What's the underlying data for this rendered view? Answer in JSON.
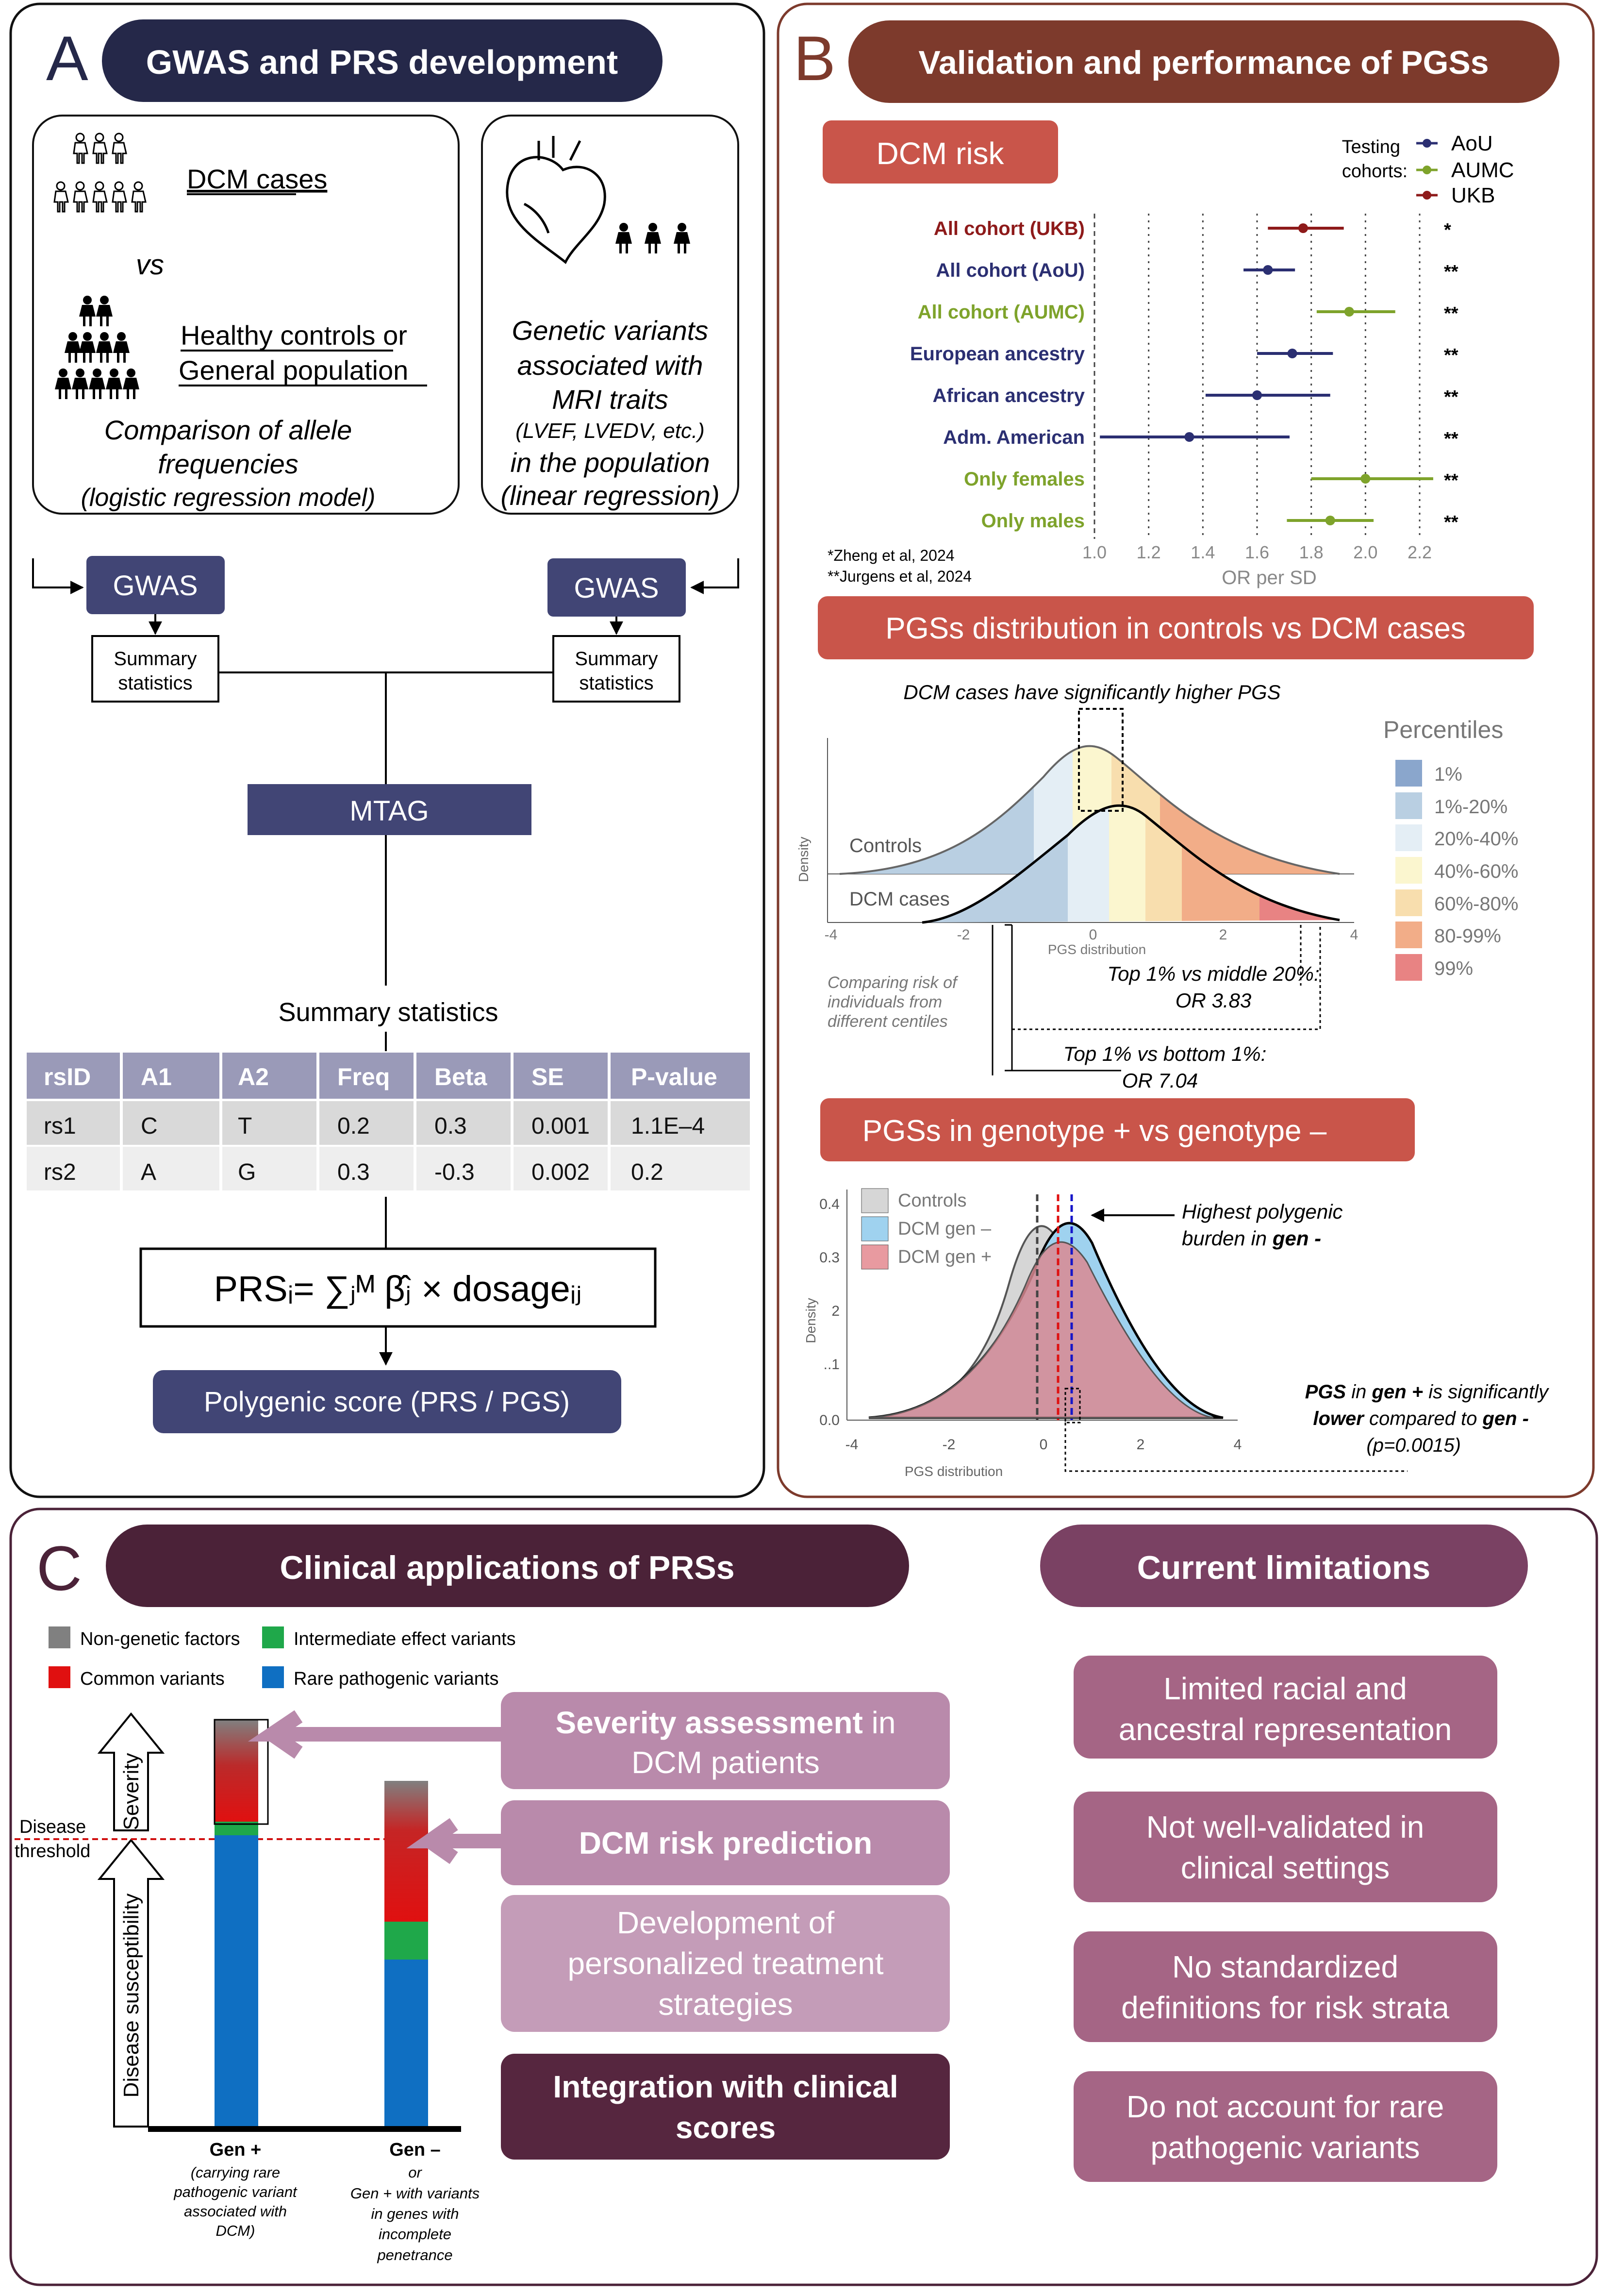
{
  "colors": {
    "panelA": "#252849",
    "panelB": "#7d3a2c",
    "panelBBox": "#c9554a",
    "panelC": "#4b2238",
    "navy": "#2b2f72",
    "green": "#7ea32b",
    "red": "#8e1a1a",
    "pink": "#b98aab",
    "purple": "#a56585",
    "darkPurple": "#56263f"
  },
  "panelA": {
    "letter": "A",
    "title": "GWAS and PRS development",
    "cases": "DCM cases",
    "vs": "vs",
    "controls1": "Healthy controls or",
    "controls2": "General population",
    "comp1": "Comparison of allele",
    "comp2": "frequencies",
    "comp3": "(logistic regression model)",
    "gen1": "Genetic variants",
    "gen2": "associated with",
    "gen3": "MRI traits",
    "gen4": "(LVEF, LVEDV, etc.)",
    "gen5": "in the population",
    "gen6": "(linear regression)",
    "gwas": "GWAS",
    "sum1": "Summary",
    "sum2": "statistics",
    "mtag": "MTAG",
    "sumstats": "Summary statistics",
    "table": {
      "headers": [
        "rsID",
        "A1",
        "A2",
        "Freq",
        "Beta",
        "SE",
        "P-value"
      ],
      "rows": [
        [
          "rs1",
          "C",
          "T",
          "0.2",
          "0.3",
          "0.001",
          "1.1E–4"
        ],
        [
          "rs2",
          "A",
          "G",
          "0.3",
          "-0.3",
          "0.002",
          "0.2"
        ]
      ]
    },
    "formula": "PRSᵢ= ∑ⱼᴹ β̂ⱼ × dosageᵢⱼ",
    "pgs": "Polygenic score (PRS / PGS)"
  },
  "panelB": {
    "letter": "B",
    "title": "Validation and performance of PGSs",
    "riskTitle": "DCM risk",
    "legendTitle1": "Testing",
    "legendTitle2": "cohorts:",
    "legend": [
      {
        "name": "AoU",
        "color": "#2b2f72"
      },
      {
        "name": "AUMC",
        "color": "#7ea32b"
      },
      {
        "name": "UKB",
        "color": "#8e1a1a"
      }
    ],
    "refs": [
      "*Zheng et al, 2024",
      "**Jurgens et al, 2024"
    ],
    "xlabel": "OR per SD",
    "xticks": [
      "1.0",
      "1.2",
      "1.4",
      "1.6",
      "1.8",
      "2.0",
      "2.2"
    ],
    "distTitle": "PGSs distribution in controls vs DCM cases",
    "distNote": "DCM cases have significantly higher PGS",
    "percTitle": "Percentiles",
    "percentiles": [
      {
        "label": "1%",
        "color": "#8aa6cc"
      },
      {
        "label": "1%-20%",
        "color": "#b9cfe2"
      },
      {
        "label": "20%-40%",
        "color": "#e4eef5"
      },
      {
        "label": "40%-60%",
        "color": "#fbf6cf"
      },
      {
        "label": "60%-80%",
        "color": "#f8deae"
      },
      {
        "label": "80-99%",
        "color": "#f2ad88"
      },
      {
        "label": "99%",
        "color": "#e88383"
      }
    ],
    "distLabels": {
      "controls": "Controls",
      "cases": "DCM cases",
      "density": "Density",
      "xlab": "PGS distribution",
      "xticks": [
        "-4",
        "-2",
        "0",
        "2",
        "4"
      ]
    },
    "compare1": "Comparing risk of",
    "compare2": "individuals from",
    "compare3": "different centiles",
    "top1a": "Top 1% vs middle 20%:",
    "top1b": "OR 3.83",
    "top2a": "Top 1% vs bottom 1%:",
    "top2b": "OR 7.04",
    "genoTitle": "PGSs in genotype + vs genotype –",
    "genoLegend": [
      {
        "name": "Controls",
        "color": "#d6d6d6"
      },
      {
        "name": "DCM gen –",
        "color": "#9fd2ef"
      },
      {
        "name": "DCM gen +",
        "color": "#e89aa0"
      }
    ],
    "genoYticks": [
      "0.4",
      "0.3",
      "2",
      "..1",
      "0.0"
    ],
    "genoXticks": [
      "-4",
      "-2",
      "0",
      "2",
      "4"
    ],
    "genoY": "Density",
    "genoX": "PGS distribution",
    "burden1": "Highest polygenic",
    "burden2": "burden in ",
    "burden3": "gen -",
    "sig1": "PGS",
    "sig2": " in ",
    "sig3": "gen +",
    "sig4": " is significantly",
    "sig5": "lower",
    "sig6": " compared to ",
    "sig7": "gen -",
    "sig8": "(p=0.0015)"
  },
  "forest": [
    {
      "label": "All cohort (UKB)",
      "color": "#8e1a1a",
      "or": 1.77,
      "lo": 1.64,
      "hi": 1.92,
      "sig": "*"
    },
    {
      "label": "All cohort (AoU)",
      "color": "#2b2f72",
      "or": 1.64,
      "lo": 1.55,
      "hi": 1.74,
      "sig": "**"
    },
    {
      "label": "All cohort (AUMC)",
      "color": "#7ea32b",
      "or": 1.94,
      "lo": 1.82,
      "hi": 2.11,
      "sig": "**"
    },
    {
      "label": "European ancestry",
      "color": "#2b2f72",
      "or": 1.73,
      "lo": 1.6,
      "hi": 1.88,
      "sig": "**"
    },
    {
      "label": "African ancestry",
      "color": "#2b2f72",
      "or": 1.6,
      "lo": 1.41,
      "hi": 1.87,
      "sig": "**"
    },
    {
      "label": "Adm. American",
      "color": "#2b2f72",
      "or": 1.35,
      "lo": 1.02,
      "hi": 1.72,
      "sig": "**"
    },
    {
      "label": "Only females",
      "color": "#7ea32b",
      "or": 2.0,
      "lo": 1.8,
      "hi": 2.25,
      "sig": "**"
    },
    {
      "label": "Only males",
      "color": "#7ea32b",
      "or": 1.87,
      "lo": 1.71,
      "hi": 2.03,
      "sig": "**"
    }
  ],
  "panelC": {
    "letter": "C",
    "title": "Clinical applications of PRSs",
    "limTitle": "Current limitations",
    "legend": [
      {
        "name": "Non-genetic  factors",
        "color": "#808080"
      },
      {
        "name": "Intermediate effect variants",
        "color": "#1fa84a"
      },
      {
        "name": "Common variants",
        "color": "#e01010"
      },
      {
        "name": "Rare pathogenic variants",
        "color": "#0f6fc2"
      }
    ],
    "severity": "Severity",
    "susceptibility": "Disease susceptibility",
    "threshold1": "Disease",
    "threshold2": "threshold",
    "genPlus": "Gen +",
    "genPlusSub": [
      "(carrying rare",
      "pathogenic variant",
      "associated with",
      "DCM)"
    ],
    "genMinus": "Gen –",
    "genMinusSub": [
      "or",
      "Gen + with variants",
      "in genes with",
      "incomplete",
      "penetrance"
    ],
    "app1a": "Severity assessment",
    "app1b": " in",
    "app1c": "DCM patients",
    "app2": "DCM risk prediction",
    "app3": [
      "Development of",
      "personalized treatment",
      "strategies"
    ],
    "app4": [
      "Integration with clinical",
      "scores"
    ],
    "limits": [
      [
        "Limited racial and",
        "ancestral representation"
      ],
      [
        "Not well-validated in",
        "clinical settings"
      ],
      [
        "No standardized",
        "definitions for risk strata"
      ],
      [
        "Do not account for rare",
        "pathogenic variants"
      ]
    ]
  }
}
